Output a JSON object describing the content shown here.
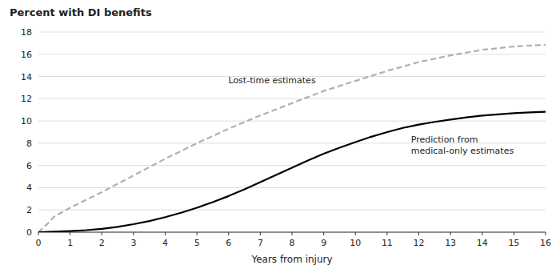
{
  "chart_data": {
    "type": "line",
    "title": "Percent with DI benefits",
    "x_label": "Years from injury",
    "xlim": [
      0,
      16
    ],
    "ylim": [
      0,
      18
    ],
    "xticks": [
      0,
      1,
      2,
      3,
      4,
      5,
      6,
      7,
      8,
      9,
      10,
      11,
      12,
      13,
      14,
      15,
      16
    ],
    "yticks": [
      0,
      2,
      4,
      6,
      8,
      10,
      12,
      14,
      16,
      18
    ],
    "grid": true,
    "series": [
      {
        "name": "Lost-time estimates",
        "color": "#b0b0b0",
        "line_style": "dashed",
        "x": [
          0,
          0.3,
          0.5,
          1,
          2,
          3,
          4,
          5,
          6,
          7,
          8,
          9,
          10,
          11,
          12,
          13,
          14,
          15,
          16
        ],
        "values": [
          0,
          0.8,
          1.4,
          2.2,
          3.6,
          5.1,
          6.6,
          8.0,
          9.3,
          10.5,
          11.6,
          12.7,
          13.6,
          14.5,
          15.3,
          15.9,
          16.4,
          16.7,
          16.85
        ]
      },
      {
        "name": "Prediction from\nmedical-only estimates",
        "color": "#000000",
        "line_style": "solid",
        "x": [
          0,
          0.5,
          1,
          1.5,
          2,
          2.5,
          3,
          3.5,
          4,
          4.5,
          5,
          5.5,
          6,
          6.5,
          7,
          7.5,
          8,
          8.5,
          9,
          9.5,
          10,
          10.5,
          11,
          11.5,
          12,
          12.5,
          13,
          13.5,
          14,
          14.5,
          15,
          15.5,
          16
        ],
        "values": [
          0,
          0.04,
          0.1,
          0.18,
          0.3,
          0.48,
          0.72,
          1.0,
          1.35,
          1.75,
          2.2,
          2.7,
          3.25,
          3.85,
          4.5,
          5.15,
          5.8,
          6.45,
          7.05,
          7.6,
          8.1,
          8.58,
          9.0,
          9.38,
          9.68,
          9.92,
          10.12,
          10.32,
          10.48,
          10.6,
          10.7,
          10.77,
          10.82
        ]
      }
    ]
  }
}
